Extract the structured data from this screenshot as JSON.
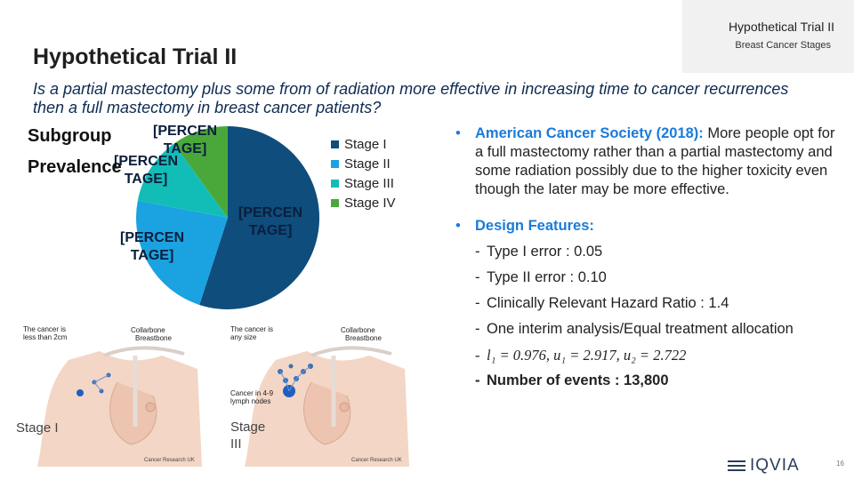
{
  "header": {
    "tag_title": "Hypothetical Trial II",
    "tag_subtitle": "Breast Cancer Stages",
    "page_title": "Hypothetical Trial II",
    "question": "Is a partial mastectomy plus some from of radiation more effective in increasing time to cancer recurrences then a full mastectomy in breast cancer patients?"
  },
  "chart_title": {
    "line1": "Subgroup",
    "line2": "Prevalence"
  },
  "chart_data": {
    "type": "pie",
    "title": "Subgroup Prevalence",
    "categories": [
      "Stage I",
      "Stage II",
      "Stage III",
      "Stage IV"
    ],
    "values": [
      55,
      23,
      12,
      10
    ],
    "data_labels": [
      "[PERCENTAGE]",
      "[PERCENTAGE]",
      "[PERCENTAGE]",
      "[PERCENTAGE]"
    ],
    "colors": [
      "#0e4d7c",
      "#1aa3e0",
      "#13bdb7",
      "#4aa83b"
    ],
    "legend_position": "right"
  },
  "pie_labels": {
    "stage1": [
      "[PERCEN",
      "TAGE]"
    ],
    "stage2": [
      "[PERCEN",
      "TAGE]"
    ],
    "stage3": [
      "[PERCEN",
      "TAGE]"
    ],
    "stage4": [
      "[PERCEN",
      "TAGE]"
    ]
  },
  "bullets": {
    "acs_head": "American Cancer Society (2018):",
    "acs_head_tail": " More",
    "acs_body": "people opt for a full mastectomy rather than a partial mastectomy and some radiation possibly due to the higher toxicity even though the later may be more effective.",
    "design_head": "Design Features:",
    "design_items": [
      "Type I error : 0.05",
      "Type II error : 0.10",
      "Clinically Relevant Hazard Ratio : 1.4",
      "One interim analysis/Equal treatment allocation",
      "l₁ = 0.976, u₁ = 2.917, u₂ = 2.722",
      "Number of events : 13,800"
    ]
  },
  "images": {
    "left": {
      "caption_cancer": "The cancer is less than 2cm",
      "caption_collarbone": "Collarbone",
      "caption_breastbone": "Breastbone",
      "stage_label": "Stage I",
      "credit": "Cancer Research UK"
    },
    "right": {
      "caption_cancer": "The cancer is any size",
      "caption_collarbone": "Collarbone",
      "caption_breastbone": "Breastbone",
      "caption_nodes": "Cancer in 4-9 lymph nodes",
      "stage_label": "Stage III",
      "credit": "Cancer Research UK"
    }
  },
  "footer": {
    "logo": "IQVIA",
    "page_number": "16"
  }
}
